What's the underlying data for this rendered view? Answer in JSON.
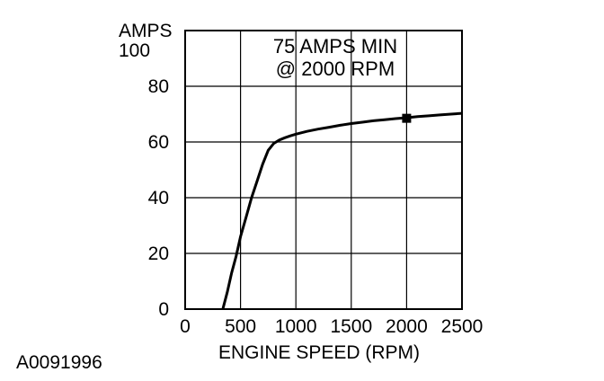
{
  "chart_data": {
    "type": "line",
    "y_unit_label": "AMPS",
    "xlabel": "ENGINE SPEED (RPM)",
    "xlim": [
      0,
      2500
    ],
    "ylim": [
      0,
      100
    ],
    "x_ticks": [
      0,
      500,
      1000,
      1500,
      2000,
      2500
    ],
    "y_ticks": [
      0,
      20,
      40,
      60,
      80,
      100
    ],
    "grid": true,
    "series": [
      {
        "x": [
          340,
          380,
          420,
          460,
          500,
          550,
          600,
          650,
          700,
          750,
          800,
          850,
          900,
          950,
          1000,
          1100,
          1200,
          1300,
          1400,
          1500,
          1600,
          1700,
          1800,
          1900,
          2000,
          2100,
          2200,
          2300,
          2400,
          2500
        ],
        "y": [
          0,
          6,
          13,
          19,
          26,
          33,
          40,
          46,
          52,
          57,
          59.5,
          60.7,
          61.5,
          62.2,
          62.8,
          63.8,
          64.6,
          65.3,
          66,
          66.6,
          67.1,
          67.6,
          68,
          68.4,
          68.7,
          69.1,
          69.4,
          69.7,
          70,
          70.3
        ]
      }
    ],
    "marker": {
      "x": 2000,
      "y": 68.5
    },
    "annotation": [
      "75 AMPS MIN",
      "@ 2000 RPM"
    ]
  },
  "figure_id": "A0091996"
}
